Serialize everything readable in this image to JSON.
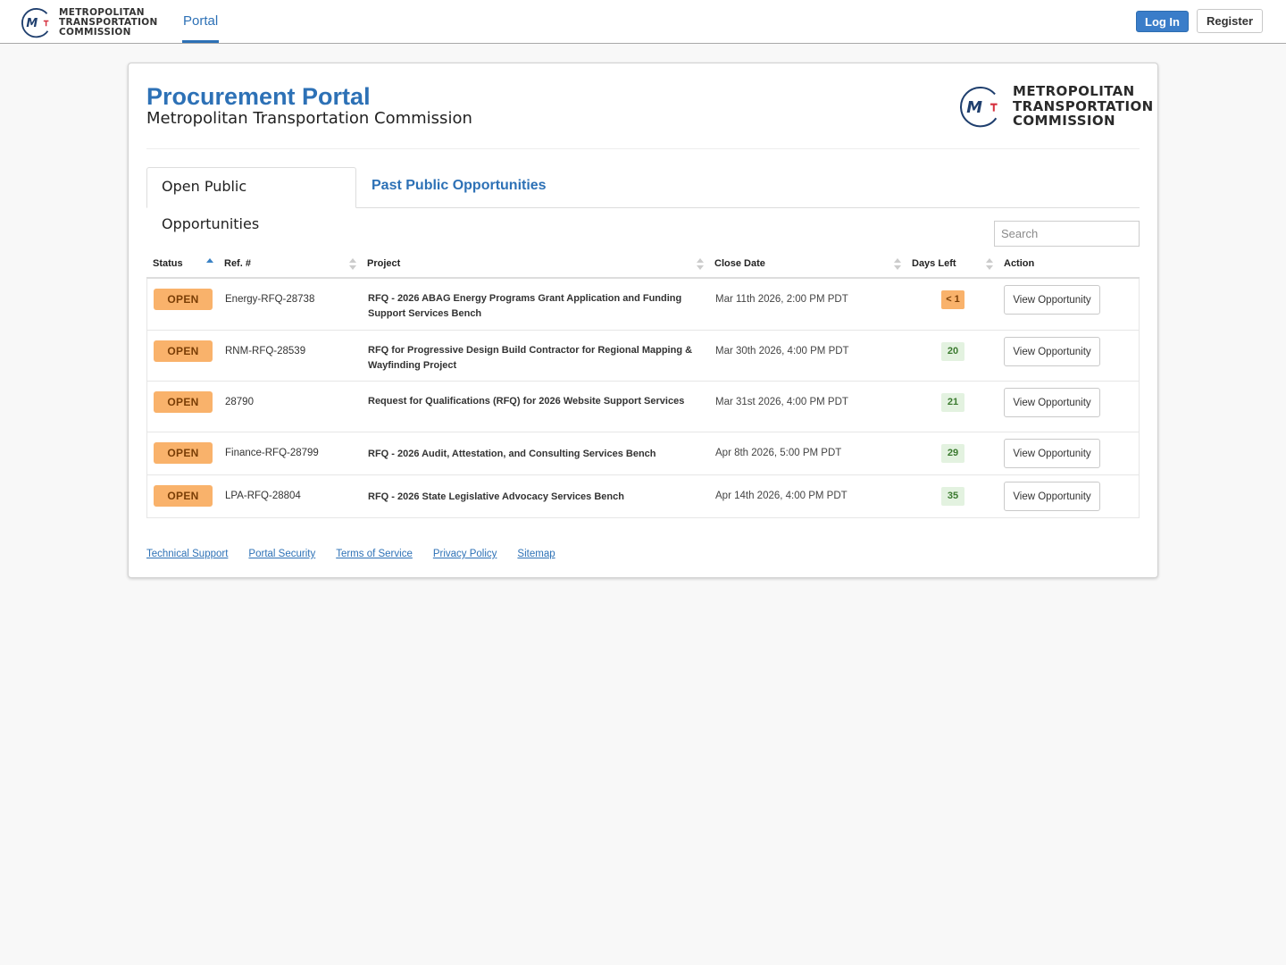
{
  "nav": {
    "logo_line1": "METROPOLITAN",
    "logo_line2": "TRANSPORTATION",
    "logo_line3": "COMMISSION",
    "portal_link": "Portal",
    "login_label": "Log In",
    "register_label": "Register"
  },
  "header": {
    "title": "Procurement Portal",
    "subtitle": "Metropolitan Transportation Commission",
    "logo_line1": "METROPOLITAN",
    "logo_line2": "TRANSPORTATION",
    "logo_line3": "COMMISSION"
  },
  "colors": {
    "brand_blue": "#2d71b6",
    "status_open": "#f9b26b",
    "days_ok": "#e3f2e0",
    "logo_red": "#d6313f",
    "logo_navy": "#1f3f6e"
  },
  "tabs": [
    {
      "label": "Open Public Opportunities",
      "active": true
    },
    {
      "label": "Past Public Opportunities",
      "active": false
    }
  ],
  "search": {
    "placeholder": "Search",
    "value": ""
  },
  "table": {
    "headers": {
      "status": "Status",
      "ref": "Ref. #",
      "project": "Project",
      "close_date": "Close Date",
      "days_left": "Days Left",
      "action": "Action"
    },
    "rows": [
      {
        "status": "OPEN",
        "ref": "Energy-RFQ-28738",
        "project": "RFQ - 2026 ABAG Energy Programs Grant Application and Funding Support Services Bench",
        "close_date": "Mar 11th 2026, 2:00 PM PDT",
        "days_left": "< 1",
        "action": "View Opportunity"
      },
      {
        "status": "OPEN",
        "ref": "RNM-RFQ-28539",
        "project": "RFQ for Progressive Design Build Contractor for Regional Mapping & Wayfinding Project",
        "close_date": "Mar 30th 2026, 4:00 PM PDT",
        "days_left": "20",
        "action": "View Opportunity"
      },
      {
        "status": "OPEN",
        "ref": "28790",
        "project": "Request for Qualifications (RFQ) for 2026 Website Support Services",
        "close_date": "Mar 31st 2026, 4:00 PM PDT",
        "days_left": "21",
        "action": "View Opportunity"
      },
      {
        "status": "OPEN",
        "ref": "Finance-RFQ-28799",
        "project": "RFQ - 2026 Audit, Attestation, and Consulting Services Bench",
        "close_date": "Apr 8th 2026, 5:00 PM PDT",
        "days_left": "29",
        "action": "View Opportunity"
      },
      {
        "status": "OPEN",
        "ref": "LPA-RFQ-28804",
        "project": "RFQ - 2026 State Legislative Advocacy Services Bench",
        "close_date": "Apr 14th 2026, 4:00 PM PDT",
        "days_left": "35",
        "action": "View Opportunity"
      }
    ]
  },
  "footer": {
    "links": [
      "Technical Support",
      "Portal Security",
      "Terms of Service",
      "Privacy Policy",
      "Sitemap"
    ]
  }
}
